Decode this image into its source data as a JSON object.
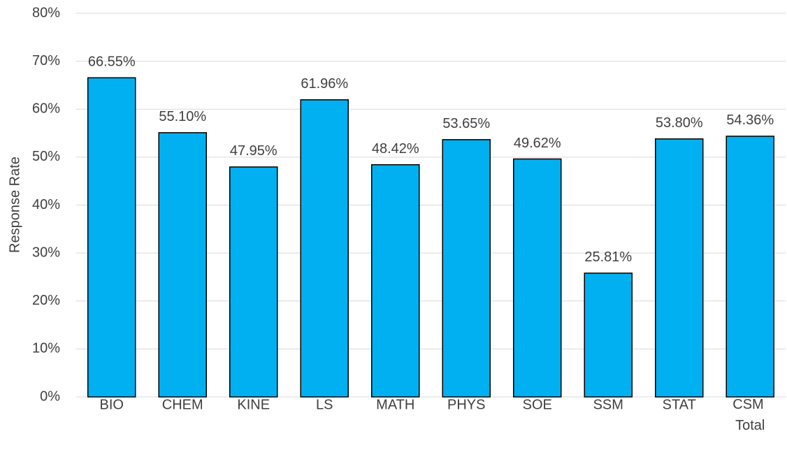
{
  "chart_data": {
    "type": "bar",
    "y_label": "Response Rate",
    "categories": [
      "BIO",
      "CHEM",
      "KINE",
      "LS",
      "MATH",
      "PHYS",
      "SOE",
      "SSM",
      "STAT",
      "CSM Total"
    ],
    "values": [
      66.55,
      55.1,
      47.95,
      61.96,
      48.42,
      53.65,
      49.62,
      25.81,
      53.8,
      54.36
    ],
    "value_labels": [
      "66.55%",
      "55.10%",
      "47.95%",
      "61.96%",
      "48.42%",
      "53.65%",
      "49.62%",
      "25.81%",
      "53.80%",
      "54.36%"
    ],
    "color": "#00b0f0",
    "ylim": [
      0,
      80
    ],
    "yticks": [
      {
        "value": 0,
        "label": "0%"
      },
      {
        "value": 10,
        "label": "10%"
      },
      {
        "value": 20,
        "label": "20%"
      },
      {
        "value": 30,
        "label": "30%"
      },
      {
        "value": 40,
        "label": "40%"
      },
      {
        "value": 50,
        "label": "50%"
      },
      {
        "value": 60,
        "label": "60%"
      },
      {
        "value": 70,
        "label": "70%"
      },
      {
        "value": 80,
        "label": "80%"
      }
    ],
    "grid": true
  }
}
